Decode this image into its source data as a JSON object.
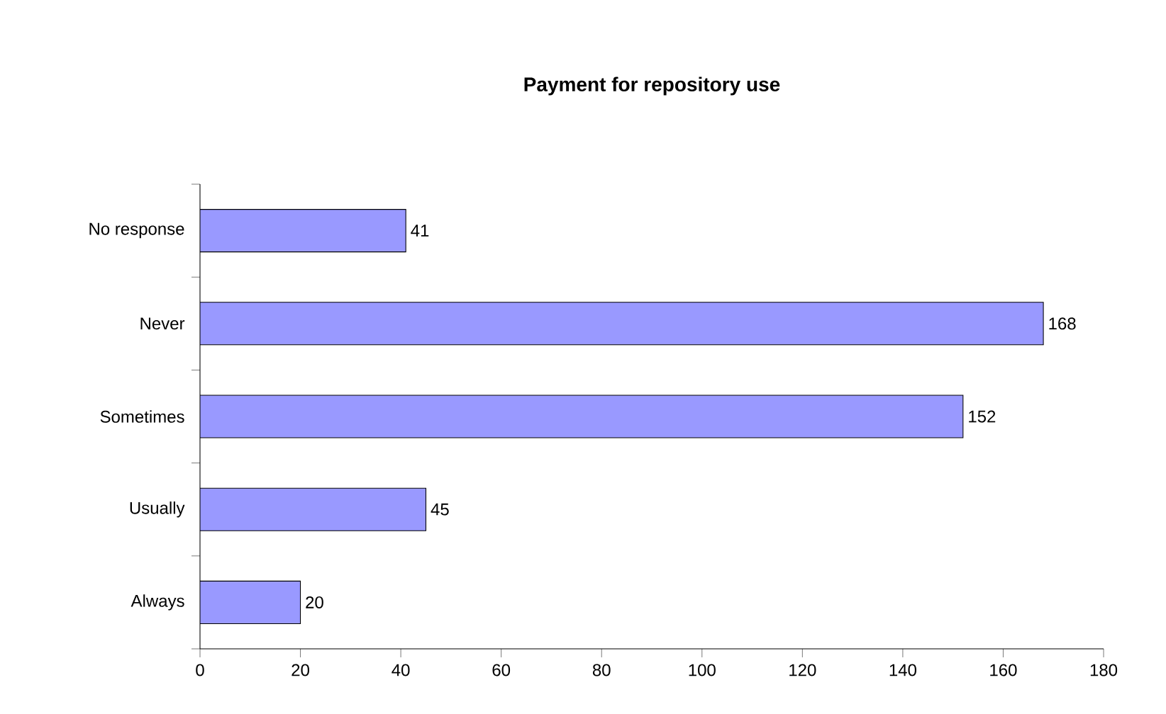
{
  "chart_data": {
    "type": "bar",
    "orientation": "horizontal",
    "title": "Payment for repository use",
    "categories": [
      "No response",
      "Never",
      "Sometimes",
      "Usually",
      "Always"
    ],
    "values": [
      41,
      168,
      152,
      45,
      20
    ],
    "color": "#9999ff",
    "data_labels": true,
    "xlim": [
      0,
      180
    ],
    "xticks": [
      0,
      20,
      40,
      60,
      80,
      100,
      120,
      140,
      160,
      180
    ],
    "grid": false
  }
}
